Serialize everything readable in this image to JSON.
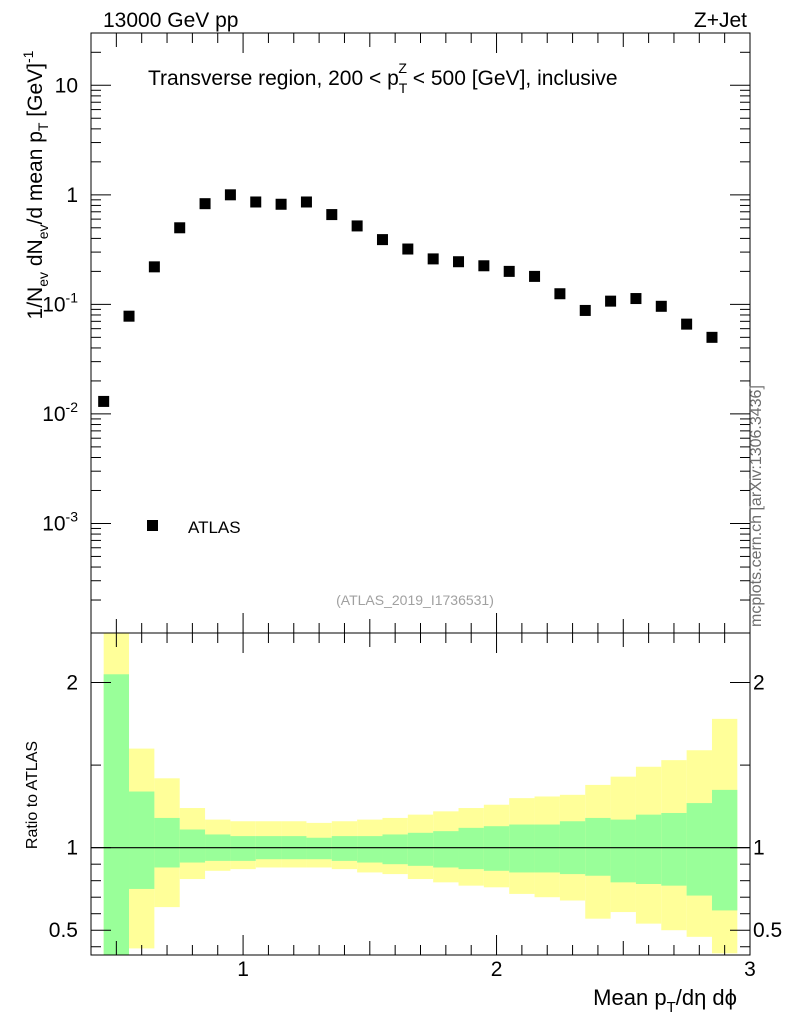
{
  "header": {
    "left": "13000 GeV pp",
    "right": "Z+Jet"
  },
  "watermark": "mcplots.cern.ch [arXiv:1306.3436]",
  "chart_data": [
    {
      "type": "scatter",
      "title": "Transverse region, 200 < pTZ < 500 [GeV], inclusive",
      "title_parts": {
        "pre": "Transverse region, 200 < p",
        "sub": "T",
        "sup": "Z",
        "post": " < 500 [GeV], inclusive"
      },
      "ylabel": "1/Nev dNev/d mean pT [GeV]-1",
      "ylabel_parts": {
        "a": "1/N",
        "b": "ev",
        "c": " dN",
        "d": "ev",
        "e": "/d mean p",
        "f": "T",
        "g": " [GeV]",
        "h": "-1"
      },
      "yscale": "log",
      "ylim": [
        0.0001,
        30
      ],
      "xlim": [
        0.4,
        3.0
      ],
      "ytick_labels": [
        {
          "base": "10",
          "exp": "-3",
          "value": 0.001
        },
        {
          "base": "10",
          "exp": "-2",
          "value": 0.01
        },
        {
          "base": "10",
          "exp": "-1",
          "value": 0.1
        },
        {
          "base": "1",
          "exp": "",
          "value": 1
        },
        {
          "base": "10",
          "exp": "",
          "value": 10
        }
      ],
      "legend": {
        "entries": [
          "ATLAS"
        ],
        "placement": "bottom-left"
      },
      "annotation": "(ATLAS_2019_I1736531)",
      "series": [
        {
          "name": "ATLAS",
          "x": [
            0.45,
            0.55,
            0.65,
            0.75,
            0.85,
            0.95,
            1.05,
            1.15,
            1.25,
            1.35,
            1.45,
            1.55,
            1.65,
            1.75,
            1.85,
            1.95,
            2.05,
            2.15,
            2.25,
            2.35,
            2.45,
            2.55,
            2.65,
            2.75,
            2.85
          ],
          "values": [
            0.013,
            0.078,
            0.22,
            0.5,
            0.83,
            1.0,
            0.86,
            0.82,
            0.86,
            0.66,
            0.52,
            0.39,
            0.32,
            0.26,
            0.245,
            0.225,
            0.2,
            0.18,
            0.125,
            0.088,
            0.107,
            0.113,
            0.096,
            0.066,
            0.05
          ]
        }
      ]
    },
    {
      "type": "area",
      "ylabel": "Ratio to ATLAS",
      "ylim": [
        0.35,
        2.3
      ],
      "xlim": [
        0.4,
        3.0
      ],
      "xlabel": "Mean pT/dη dϕ",
      "xlabel_parts": {
        "pre": "Mean p",
        "sub": "T",
        "post": "/dη dϕ"
      },
      "xtick_labels": [
        "1",
        "2",
        "3"
      ],
      "ytick_labels": [
        "0.5",
        "1",
        "2"
      ],
      "reference_line": 1,
      "bin_edges": [
        0.45,
        0.55,
        0.65,
        0.75,
        0.85,
        0.95,
        1.05,
        1.15,
        1.25,
        1.35,
        1.45,
        1.55,
        1.65,
        1.75,
        1.85,
        1.95,
        2.05,
        2.15,
        2.25,
        2.35,
        2.45,
        2.55,
        2.65,
        2.75,
        2.85,
        2.95
      ],
      "band_stat": {
        "name": "stat",
        "color": "#99ff99",
        "upper": [
          2.05,
          1.34,
          1.18,
          1.11,
          1.08,
          1.07,
          1.07,
          1.07,
          1.06,
          1.07,
          1.07,
          1.08,
          1.09,
          1.1,
          1.12,
          1.13,
          1.14,
          1.14,
          1.16,
          1.18,
          1.17,
          1.2,
          1.21,
          1.27,
          1.35
        ],
        "lower": [
          0.35,
          0.75,
          0.88,
          0.91,
          0.92,
          0.92,
          0.93,
          0.93,
          0.93,
          0.92,
          0.91,
          0.9,
          0.89,
          0.88,
          0.87,
          0.86,
          0.85,
          0.85,
          0.84,
          0.83,
          0.79,
          0.78,
          0.77,
          0.71,
          0.62
        ]
      },
      "band_total": {
        "name": "stat+syst",
        "color": "#ffff99",
        "upper": [
          2.4,
          1.6,
          1.42,
          1.24,
          1.17,
          1.16,
          1.16,
          1.16,
          1.15,
          1.16,
          1.17,
          1.18,
          1.2,
          1.22,
          1.24,
          1.26,
          1.3,
          1.31,
          1.32,
          1.38,
          1.43,
          1.49,
          1.53,
          1.59,
          1.78
        ]
      },
      "band_total_lower": [
        0.35,
        0.39,
        0.64,
        0.81,
        0.86,
        0.87,
        0.88,
        0.88,
        0.88,
        0.87,
        0.85,
        0.84,
        0.81,
        0.79,
        0.77,
        0.76,
        0.72,
        0.7,
        0.68,
        0.57,
        0.61,
        0.54,
        0.5,
        0.46,
        0.36
      ]
    }
  ]
}
